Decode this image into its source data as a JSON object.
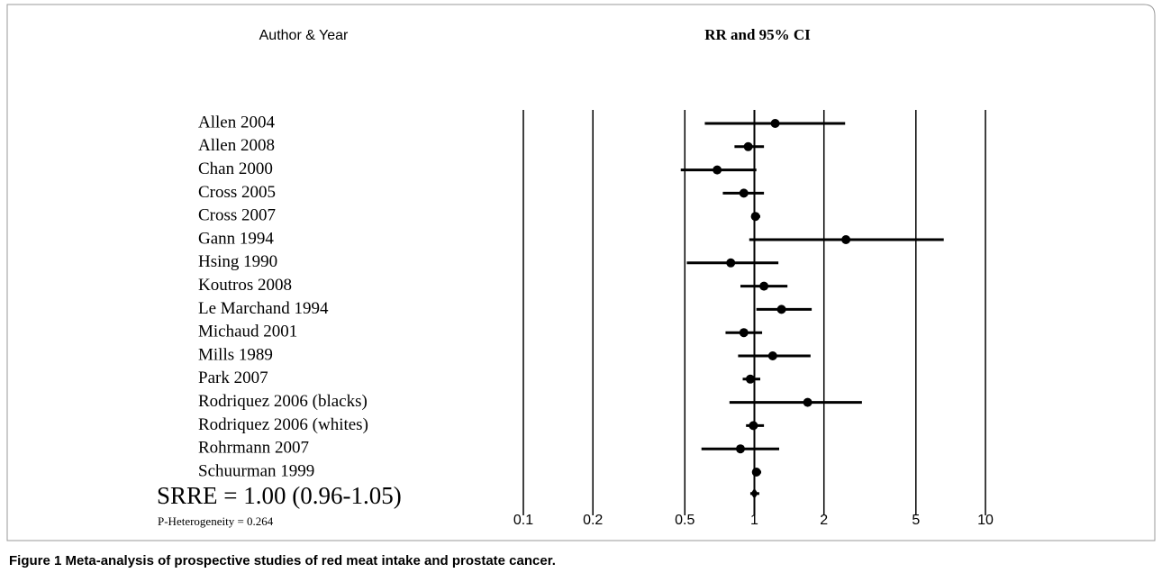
{
  "chart_data": {
    "type": "forest",
    "column_header": "Author & Year",
    "title": "RR and 95% CI",
    "categories": [
      "Allen 2004",
      "Allen 2008",
      "Chan 2000",
      "Cross 2005",
      "Cross 2007",
      "Gann 1994",
      "Hsing 1990",
      "Koutros 2008",
      "Le Marchand 1994",
      "Michaud 2001",
      "Mills 1989",
      "Park 2007",
      "Rodriquez 2006 (blacks)",
      "Rodriquez 2006 (whites)",
      "Rohrmann 2007",
      "Schuurman 1999"
    ],
    "values": [
      1.23,
      0.94,
      0.69,
      0.9,
      1.01,
      2.49,
      0.79,
      1.1,
      1.31,
      0.9,
      1.2,
      0.96,
      1.7,
      0.99,
      0.87,
      1.02
    ],
    "lower": [
      0.61,
      0.82,
      0.48,
      0.73,
      0.97,
      0.95,
      0.51,
      0.87,
      1.02,
      0.75,
      0.85,
      0.89,
      0.78,
      0.92,
      0.59,
      0.98
    ],
    "upper": [
      2.47,
      1.1,
      1.02,
      1.1,
      1.06,
      6.6,
      1.27,
      1.39,
      1.77,
      1.08,
      1.75,
      1.06,
      2.92,
      1.1,
      1.28,
      1.07
    ],
    "color": "#000000",
    "summary": {
      "label": "SRRE = 1.00 (0.96-1.05)",
      "value": 1.0,
      "lower": 0.96,
      "upper": 1.05
    },
    "heterogeneity": "P-Heterogeneity = 0.264",
    "xscale": "log",
    "xlim": [
      0.1,
      10
    ],
    "xticks": [
      0.1,
      0.2,
      0.5,
      1,
      2,
      5,
      10
    ],
    "grid": true,
    "caption": {
      "label": "Figure 1",
      "text": "Meta-analysis of prospective studies of red meat intake and prostate cancer."
    }
  }
}
